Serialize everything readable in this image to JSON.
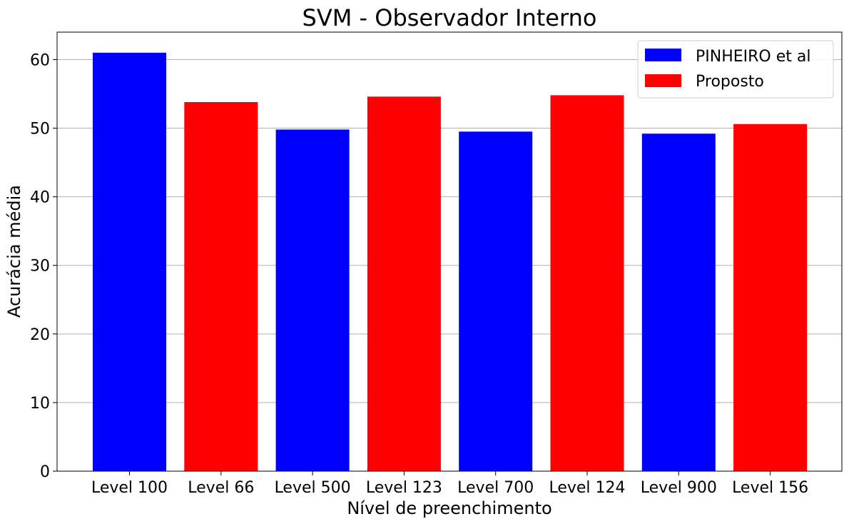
{
  "chart_data": {
    "type": "bar",
    "title": "SVM - Observador Interno",
    "xlabel": "Nível de preenchimento",
    "ylabel": "Acurácia média",
    "categories": [
      "Level 100",
      "Level 66",
      "Level 500",
      "Level 123",
      "Level 700",
      "Level 124",
      "Level 900",
      "Level 156"
    ],
    "values": [
      61.0,
      53.8,
      49.8,
      54.6,
      49.5,
      54.8,
      49.2,
      50.6
    ],
    "bar_series": [
      "PINHEIRO et al",
      "Proposto",
      "PINHEIRO et al",
      "Proposto",
      "PINHEIRO et al",
      "Proposto",
      "PINHEIRO et al",
      "Proposto"
    ],
    "series": [
      {
        "name": "PINHEIRO et al",
        "color": "#0000ff"
      },
      {
        "name": "Proposto",
        "color": "#ff0000"
      }
    ],
    "ylim": [
      0,
      64
    ],
    "yticks": [
      0,
      10,
      20,
      30,
      40,
      50,
      60
    ],
    "grid": "horizontal",
    "legend_position": "top-right"
  }
}
